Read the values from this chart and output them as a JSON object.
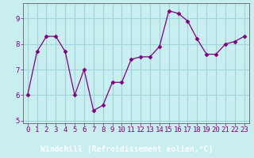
{
  "x": [
    0,
    1,
    2,
    3,
    4,
    5,
    6,
    7,
    8,
    9,
    10,
    11,
    12,
    13,
    14,
    15,
    16,
    17,
    18,
    19,
    20,
    21,
    22,
    23
  ],
  "y": [
    6.0,
    7.7,
    8.3,
    8.3,
    7.7,
    6.0,
    7.0,
    5.4,
    5.6,
    6.5,
    6.5,
    7.4,
    7.5,
    7.5,
    7.9,
    9.3,
    9.2,
    8.9,
    8.2,
    7.6,
    7.6,
    8.0,
    8.1,
    8.3
  ],
  "line_color": "#800080",
  "marker": "D",
  "marker_size": 2.5,
  "bg_color": "#c8eef0",
  "grid_color": "#a0d4d8",
  "xlabel": "Windchill (Refroidissement éolien,°C)",
  "xlim": [
    -0.5,
    23.5
  ],
  "ylim": [
    4.9,
    9.6
  ],
  "yticks": [
    5,
    6,
    7,
    8,
    9
  ],
  "xticks": [
    0,
    1,
    2,
    3,
    4,
    5,
    6,
    7,
    8,
    9,
    10,
    11,
    12,
    13,
    14,
    15,
    16,
    17,
    18,
    19,
    20,
    21,
    22,
    23
  ],
  "xlabel_fontsize": 7.0,
  "tick_fontsize": 6.5,
  "tick_color": "#800080",
  "label_color": "#800080",
  "spine_color": "#606060",
  "bottom_bar_color": "#6020a0",
  "bottom_bar_text_color": "#ffffff"
}
